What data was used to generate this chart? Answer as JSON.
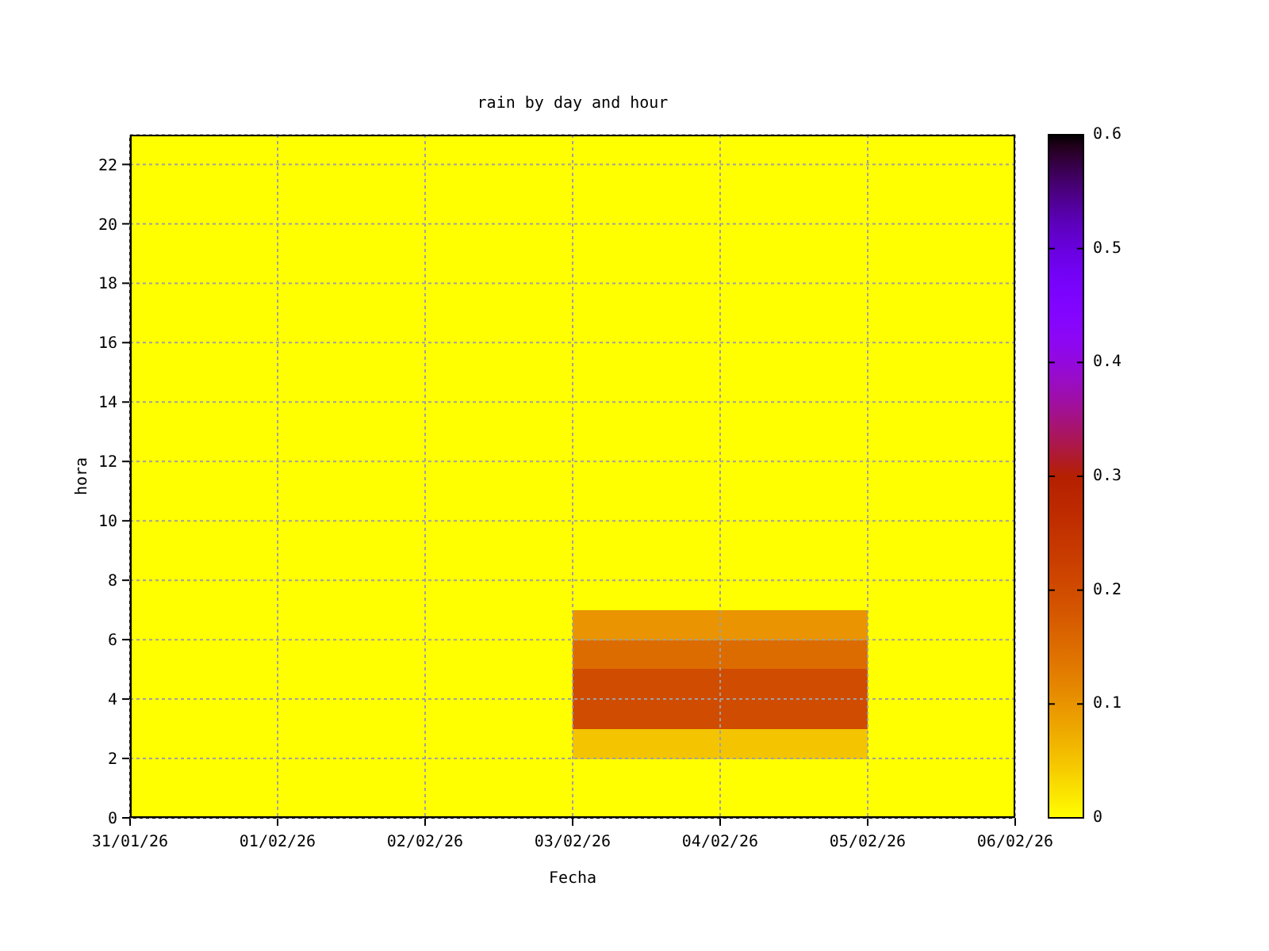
{
  "chart_data": {
    "type": "heatmap",
    "title": "rain by day and hour",
    "xlabel": "Fecha",
    "ylabel": "hora",
    "x": [
      "--01-31T12:00",
      "--02-01T12:00",
      "--02-02T12:00",
      "--02-03T12:00",
      "--02-04T12:00",
      "--02-05T12:00"
    ],
    "xlim": [
      "--01-31",
      "--02-06"
    ],
    "xticks": [
      {
        "value": "--01-31",
        "label": "31/01/26"
      },
      {
        "value": "--02-01",
        "label": "01/02/26"
      },
      {
        "value": "--02-02",
        "label": "02/02/26"
      },
      {
        "value": "--02-03",
        "label": "03/02/26"
      },
      {
        "value": "--02-04",
        "label": "04/02/26"
      },
      {
        "value": "--02-05",
        "label": "05/02/26"
      },
      {
        "value": "--02-06",
        "label": "06/02/26"
      }
    ],
    "ylim": [
      0,
      23
    ],
    "yticks": [
      0,
      2,
      4,
      6,
      8,
      10,
      12,
      14,
      16,
      18,
      20,
      22
    ],
    "cells": [
      [
        0,
        0,
        0,
        0,
        0,
        0
      ],
      [
        0,
        0,
        0,
        0,
        0,
        0
      ],
      [
        0,
        0,
        0,
        0,
        0,
        0
      ],
      [
        0,
        0,
        0,
        0,
        0,
        0
      ],
      [
        0,
        0,
        0,
        0,
        0,
        0
      ],
      [
        0,
        0,
        0,
        0,
        0,
        0
      ],
      [
        0,
        0,
        0,
        0,
        0,
        0
      ],
      [
        0,
        0,
        0,
        0,
        0,
        0
      ],
      [
        0,
        0,
        0,
        0,
        0,
        0
      ],
      [
        0,
        0,
        0,
        0,
        0,
        0
      ],
      [
        0,
        0,
        0,
        0,
        0,
        0
      ],
      [
        0,
        0,
        0,
        0,
        0,
        0
      ],
      [
        0,
        0,
        0,
        0,
        0,
        0
      ],
      [
        0,
        0,
        0,
        0,
        0,
        0
      ],
      [
        0,
        0,
        0,
        0,
        0,
        0
      ],
      [
        0,
        0,
        0,
        0,
        0,
        0
      ],
      [
        0,
        0,
        0,
        0.1,
        0.1,
        0
      ],
      [
        0,
        0,
        0,
        0.15,
        0.15,
        0
      ],
      [
        0,
        0,
        0,
        0.2,
        0.2,
        0
      ],
      [
        0,
        0,
        0,
        0.2,
        0.2,
        0
      ],
      [
        0,
        0,
        0,
        0.05,
        0.05,
        0
      ],
      [
        0,
        0,
        0,
        0,
        0,
        0
      ],
      [
        0,
        0,
        0,
        0,
        0,
        0
      ]
    ],
    "clim": [
      0,
      0.6
    ],
    "cticks": [
      0,
      0.1,
      0.2,
      0.3,
      0.4,
      0.5,
      0.6
    ],
    "grid": true
  }
}
